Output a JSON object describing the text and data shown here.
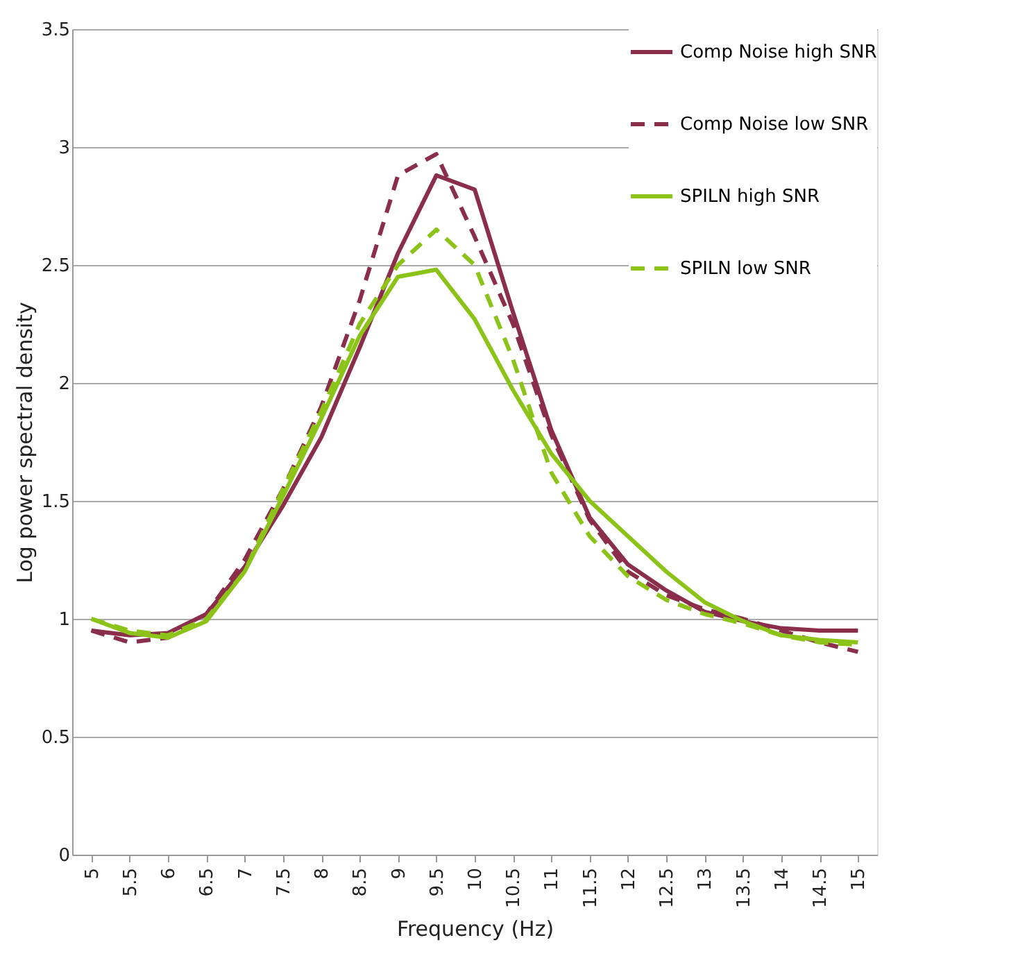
{
  "chart_data": {
    "type": "line",
    "xlabel": "Frequency (Hz)",
    "ylabel": "Log power spectral density",
    "categories": [
      "5",
      "5.5",
      "6",
      "6.5",
      "7",
      "7.5",
      "8",
      "8.5",
      "9",
      "9.5",
      "10",
      "10.5",
      "11",
      "11.5",
      "12",
      "12.5",
      "13",
      "13.5",
      "14",
      "14.5",
      "15"
    ],
    "ylim": [
      0,
      3.5
    ],
    "yticks": [
      0,
      0.5,
      1,
      1.5,
      2,
      2.5,
      3,
      3.5
    ],
    "grid": "y",
    "legend": "top right",
    "marker": "none",
    "series": [
      {
        "name": "Comp Noise high SNR",
        "color": "#8b2e4b",
        "line_style": "solid",
        "values": [
          0.95,
          0.93,
          0.94,
          1.02,
          1.22,
          1.48,
          1.77,
          2.15,
          2.55,
          2.88,
          2.82,
          2.3,
          1.8,
          1.43,
          1.23,
          1.12,
          1.03,
          0.99,
          0.96,
          0.95,
          0.95
        ]
      },
      {
        "name": "Comp Noise low SNR",
        "color": "#8b2e4b",
        "line_style": "dashed",
        "values": [
          0.95,
          0.9,
          0.92,
          1.02,
          1.25,
          1.55,
          1.9,
          2.35,
          2.88,
          2.97,
          2.62,
          2.25,
          1.78,
          1.42,
          1.2,
          1.1,
          1.04,
          1.0,
          0.95,
          0.9,
          0.86
        ]
      },
      {
        "name": "SPILN high SNR",
        "color": "#8cc319",
        "line_style": "solid",
        "values": [
          1.0,
          0.94,
          0.92,
          0.99,
          1.2,
          1.52,
          1.85,
          2.2,
          2.45,
          2.48,
          2.27,
          1.97,
          1.7,
          1.5,
          1.35,
          1.2,
          1.07,
          0.99,
          0.93,
          0.91,
          0.9
        ]
      },
      {
        "name": "SPILN low SNR",
        "color": "#8cc319",
        "line_style": "dashed",
        "values": [
          1.0,
          0.95,
          0.93,
          1.0,
          1.2,
          1.55,
          1.88,
          2.25,
          2.5,
          2.65,
          2.5,
          2.1,
          1.62,
          1.35,
          1.18,
          1.08,
          1.02,
          0.98,
          0.93,
          0.9,
          0.89
        ]
      }
    ]
  }
}
